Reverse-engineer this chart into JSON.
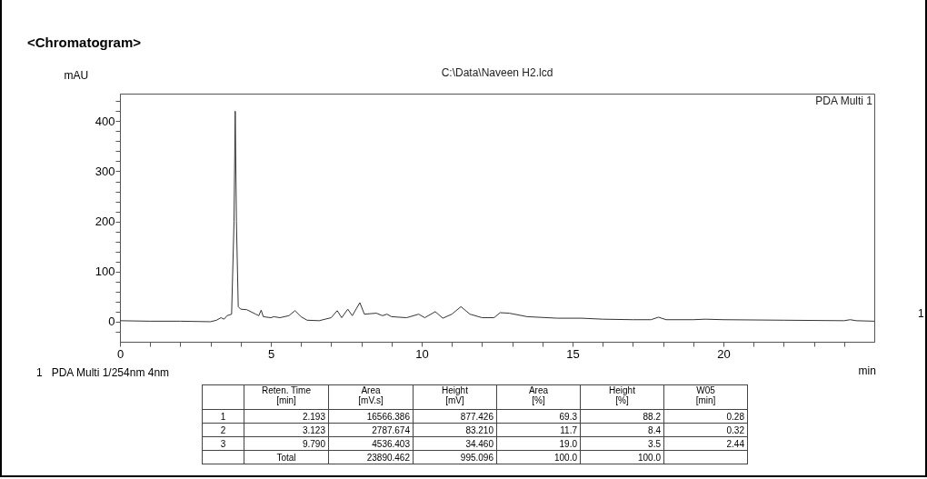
{
  "chart_data": {
    "type": "line",
    "title": "<Chromatogram>",
    "subtitle": "C:\\Data\\Naveen H2.lcd",
    "xlabel": "min",
    "ylabel": "mAU",
    "x": [
      0,
      1,
      2,
      3.0,
      3.2,
      3.35,
      3.45,
      3.55,
      3.7,
      3.78,
      3.82,
      3.86,
      3.92,
      4.0,
      4.2,
      4.5,
      4.6,
      4.68,
      4.75,
      5.0,
      5.1,
      5.3,
      5.6,
      5.8,
      6.0,
      6.2,
      6.6,
      7.0,
      7.2,
      7.35,
      7.55,
      7.7,
      7.95,
      8.1,
      8.5,
      8.7,
      8.85,
      9.0,
      9.5,
      9.9,
      10.1,
      10.45,
      10.7,
      11.0,
      11.3,
      11.6,
      12.0,
      12.4,
      12.6,
      12.9,
      13.5,
      14.5,
      15.3,
      16.0,
      17.0,
      17.6,
      17.85,
      18.1,
      19.0,
      19.4,
      20,
      22,
      24,
      24.2,
      24.4,
      25
    ],
    "series": [
      {
        "color": "#333333",
        "values": [
          2,
          1,
          1,
          0,
          3,
          8,
          5,
          12,
          15,
          200,
          420,
          200,
          30,
          25,
          24,
          15,
          12,
          23,
          10,
          8,
          10,
          8,
          12,
          22,
          10,
          3,
          2,
          8,
          22,
          8,
          25,
          12,
          38,
          15,
          17,
          12,
          15,
          10,
          8,
          15,
          8,
          20,
          7,
          15,
          30,
          15,
          8,
          8,
          18,
          17,
          10,
          7,
          7,
          5,
          4,
          4,
          9,
          4,
          4,
          5,
          4,
          3,
          2,
          4,
          2,
          1
        ]
      }
    ],
    "xlim": [
      0,
      25
    ],
    "xticks": [
      0,
      {
        "value": 1,
        "label": null
      },
      {
        "value": 2,
        "label": null
      },
      {
        "value": 3,
        "label": null
      },
      {
        "value": 4,
        "label": null
      },
      5,
      {
        "value": 6,
        "label": null
      },
      {
        "value": 7,
        "label": null
      },
      {
        "value": 8,
        "label": null
      },
      {
        "value": 9,
        "label": null
      },
      10,
      {
        "value": 11,
        "label": null
      },
      {
        "value": 12,
        "label": null
      },
      {
        "value": 13,
        "label": null
      },
      {
        "value": 14,
        "label": null
      },
      15,
      {
        "value": 16,
        "label": null
      },
      {
        "value": 17,
        "label": null
      },
      {
        "value": 18,
        "label": null
      },
      {
        "value": 19,
        "label": null
      },
      20,
      {
        "value": 21,
        "label": null
      },
      {
        "value": 22,
        "label": null
      },
      {
        "value": 23,
        "label": null
      },
      {
        "value": 24,
        "label": null
      }
    ],
    "ylim": [
      -40,
      455
    ],
    "yticks": [
      {
        "value": -20,
        "label": null
      },
      0,
      {
        "value": 20,
        "label": null
      },
      {
        "value": 40,
        "label": null
      },
      {
        "value": 60,
        "label": null
      },
      {
        "value": 80,
        "label": null
      },
      100,
      {
        "value": 120,
        "label": null
      },
      {
        "value": 140,
        "label": null
      },
      {
        "value": 160,
        "label": null
      },
      {
        "value": 180,
        "label": null
      },
      200,
      {
        "value": 220,
        "label": null
      },
      {
        "value": 240,
        "label": null
      },
      {
        "value": 260,
        "label": null
      },
      {
        "value": 280,
        "label": null
      },
      300,
      {
        "value": 320,
        "label": null
      },
      {
        "value": 340,
        "label": null
      },
      {
        "value": 360,
        "label": null
      },
      {
        "value": 380,
        "label": null
      },
      400,
      {
        "value": 420,
        "label": null
      },
      {
        "value": 440,
        "label": null
      }
    ],
    "grid": false,
    "marker": "none",
    "line_style": "solid",
    "annotations": [
      "PDA Multi 1",
      "1",
      "1   PDA Multi 1/254nm 4nm",
      "Reten. Time\n[min]",
      "Area\n[mV.s]",
      "Height\n[mV]",
      "Area\n[%]",
      "Height\n[%]",
      "W05\n[min]",
      "1",
      "2.193",
      "16566.386",
      "877.426",
      "69.3",
      "88.2",
      "0.28",
      "2",
      "3.123",
      "2787.674",
      "83.210",
      "11.7",
      "8.4",
      "0.32",
      "3",
      "9.790",
      "4536.403",
      "34.460",
      "19.0",
      "3.5",
      "2.44",
      "Total",
      "23890.462",
      "995.096",
      "100.0",
      "100.0"
    ]
  }
}
